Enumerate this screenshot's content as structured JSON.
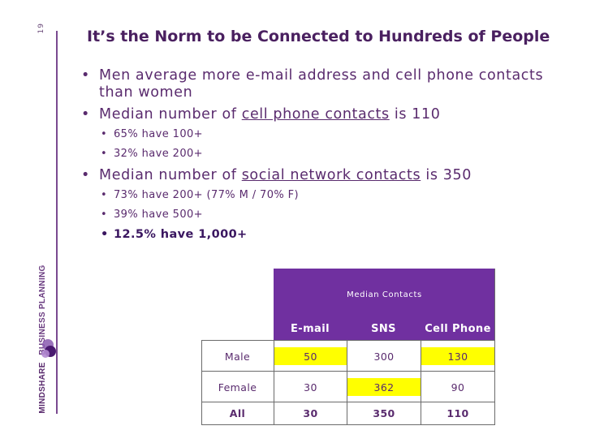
{
  "slide": {
    "page_number": "19",
    "title": "It’s the Norm to be Connected to Hundreds of People",
    "brand": {
      "name": "MINDSHARE",
      "tagline": "BUSINESS PLANNING"
    }
  },
  "bullets": {
    "b1": "Men average more e-mail address and cell phone contacts than women",
    "b2_prefix": "Median number of ",
    "b2_link": "cell phone contacts",
    "b2_suffix": " is 110",
    "b2_sub1": "65% have 100+",
    "b2_sub2": "32% have 200+",
    "b3_prefix": "Median number of ",
    "b3_link": "social network contacts",
    "b3_suffix": " is 350",
    "b3_sub1": "73% have 200+ (77% M / 70% F)",
    "b3_sub2": "39% have 500+",
    "b3_sub3": "12.5% have 1,000+"
  },
  "table": {
    "group_header": "Median Contacts",
    "columns": [
      "E-mail",
      "SNS",
      "Cell Phone"
    ],
    "rows": [
      {
        "label": "Male",
        "values": [
          "50",
          "300",
          "130"
        ]
      },
      {
        "label": "Female",
        "values": [
          "30",
          "362",
          "90"
        ]
      },
      {
        "label": "All",
        "values": [
          "30",
          "350",
          "110"
        ]
      }
    ]
  },
  "colors": {
    "accent": "#7030a0",
    "highlight": "#ffff00",
    "text": "#5a2b6e"
  }
}
